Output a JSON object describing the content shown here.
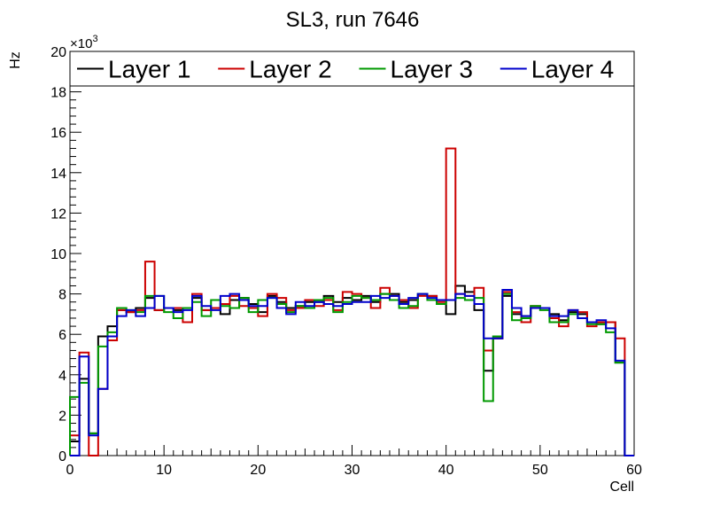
{
  "chart_data": {
    "type": "histogram-step",
    "title": "SL3, run 7646",
    "xlabel": "Cell",
    "ylabel": "Hz",
    "y_multiplier_label": "×10",
    "y_multiplier_exp": "3",
    "xlim": [
      0,
      60
    ],
    "ylim": [
      0,
      20000
    ],
    "x_major_ticks": [
      0,
      10,
      20,
      30,
      40,
      50,
      60
    ],
    "x_tick_labels": [
      "0",
      "10",
      "20",
      "30",
      "40",
      "50",
      "60"
    ],
    "y_major_ticks": [
      0,
      2000,
      4000,
      6000,
      8000,
      10000,
      12000,
      14000,
      16000,
      18000,
      20000
    ],
    "y_tick_labels": [
      "0",
      "2",
      "4",
      "6",
      "8",
      "10",
      "12",
      "14",
      "16",
      "18",
      "20"
    ],
    "legend_placement": "top, full width",
    "bin_width": 1,
    "series": [
      {
        "name": "Layer 1",
        "color": "#000000",
        "values": [
          700,
          3800,
          1100,
          5900,
          6400,
          7200,
          7100,
          7300,
          7800,
          7200,
          7300,
          7200,
          7300,
          7800,
          7200,
          7300,
          7000,
          7700,
          7800,
          7500,
          7100,
          7900,
          7600,
          7300,
          7400,
          7600,
          7600,
          7900,
          7600,
          7800,
          7700,
          7900,
          7600,
          8000,
          8000,
          7600,
          7700,
          8000,
          7900,
          7700,
          7000,
          8400,
          8100,
          7200,
          4200,
          5800,
          7900,
          7000,
          6900,
          7300,
          7300,
          7000,
          6700,
          7100,
          7000,
          6600,
          6500,
          6600,
          4600,
          0
        ]
      },
      {
        "name": "Layer 2",
        "color": "#cc0000",
        "values": [
          1000,
          5100,
          0,
          3300,
          5700,
          7200,
          7100,
          7200,
          9600,
          7200,
          7300,
          7300,
          6600,
          8000,
          7200,
          7300,
          7500,
          7900,
          7400,
          7300,
          6900,
          8000,
          7800,
          7200,
          7300,
          7700,
          7400,
          7700,
          7200,
          8100,
          8000,
          7800,
          7300,
          8300,
          7900,
          7700,
          7300,
          7900,
          7900,
          7600,
          15200,
          8000,
          7900,
          8300,
          5200,
          5800,
          8100,
          7100,
          6600,
          7400,
          7300,
          6800,
          6400,
          7200,
          7100,
          6400,
          6600,
          6600,
          5800,
          0
        ]
      },
      {
        "name": "Layer 3",
        "color": "#009900",
        "values": [
          2900,
          3600,
          1100,
          5400,
          6100,
          7300,
          7200,
          7100,
          7900,
          7900,
          7100,
          6800,
          7300,
          7600,
          6900,
          7700,
          7400,
          7300,
          7800,
          7100,
          7700,
          7800,
          7500,
          7100,
          7400,
          7300,
          7700,
          7800,
          7100,
          7600,
          7900,
          7800,
          7700,
          8000,
          7700,
          7300,
          7400,
          8000,
          7700,
          7500,
          7700,
          7800,
          7700,
          7800,
          2700,
          5900,
          8000,
          6700,
          6800,
          7400,
          7200,
          6600,
          6600,
          7000,
          6800,
          6500,
          6500,
          6100,
          4600,
          0
        ]
      },
      {
        "name": "Layer 4",
        "color": "#0000cc",
        "values": [
          0,
          4900,
          1000,
          3300,
          5900,
          6900,
          7200,
          6900,
          7300,
          7900,
          7300,
          7100,
          7200,
          7900,
          7400,
          7200,
          7900,
          8000,
          7700,
          7400,
          7400,
          7800,
          7300,
          7000,
          7600,
          7400,
          7600,
          7500,
          7400,
          7500,
          7600,
          7600,
          7900,
          7800,
          7900,
          7500,
          7800,
          8000,
          7800,
          7700,
          7700,
          8000,
          7900,
          7500,
          5800,
          5800,
          8200,
          7300,
          6900,
          7300,
          7300,
          6900,
          6900,
          7200,
          6800,
          6600,
          6700,
          6300,
          4700,
          0
        ]
      }
    ]
  }
}
